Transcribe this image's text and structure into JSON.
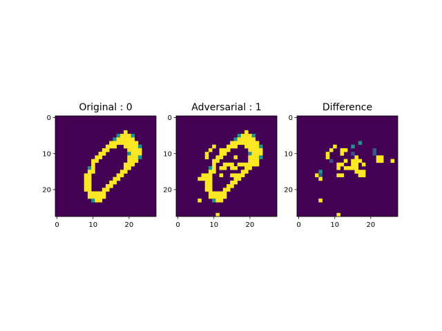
{
  "figure": {
    "background": "#ffffff"
  },
  "colormap": {
    "name": "viridis",
    "stops": [
      "#440154",
      "#3b528b",
      "#21918c",
      "#5ec962",
      "#fde725"
    ]
  },
  "chart_data": [
    {
      "type": "heatmap",
      "title": "Original : 0",
      "grid": "28x28",
      "xticks": [
        0,
        10,
        20
      ],
      "yticks": [
        0,
        10,
        20
      ],
      "xlim": [
        -0.5,
        27.5
      ],
      "ylim": [
        27.5,
        -0.5
      ],
      "rows": [
        "............................",
        "............................",
        "............................",
        "............................",
        "...................H........",
        ".................uHHHu......",
        "................uHHHHH......",
        "...............HHHHHHHH.....",
        "..............HHH..HHHHu....",
        ".............HH.....HHHH....",
        "............HH......uHHH....",
        "...........HH.......HHHu....",
        "..........HH........HHH.....",
        "..........H........HHH......",
        ".........uH........HH.......",
        ".........HH.......HH........",
        "........HH.......HH.........",
        "........HH......HH..........",
        "........HH.....HH...........",
        "........HH....HH............",
        "........HH...HH.............",
        ".........HHHHH..............",
        ".........HHHHH..............",
        "..........uHH...............",
        "............................",
        "............................",
        "............................",
        "............................"
      ]
    },
    {
      "type": "heatmap",
      "title": "Adversarial : 1",
      "grid": "28x28",
      "xticks": [
        0,
        10,
        20
      ],
      "yticks": [
        0,
        10,
        20
      ],
      "xlim": [
        -0.5,
        27.5
      ],
      "ylim": [
        27.5,
        -0.5
      ],
      "rows": [
        "............................",
        "............................",
        "............................",
        "............................",
        "...................H........",
        ".................uHHHu......",
        "................uHHHHH......",
        "...............HHHHHHHH.....",
        "..........H...HHH..HHHHu....",
        ".........H..HHH.....HHHH....",
        "........H...HH......uHHH....",
        "........H..HH...H...HHHu....",
        "..........HH........HHH.....",
        "..........H..HHH.HHHHHH.....",
        ".........uH.HH.HH..HH.......",
        ".........HH.......HH........",
        ".......HHH..H..HHHH.........",
        "......HHHH......HH..........",
        "........HH.....HH...........",
        "........HH....HH............",
        "........HH...HH.............",
        ".........HHHHH..............",
        ".........HHHHH..............",
        "......H...uHH...............",
        "............................",
        "............................",
        "............................",
        "...........H................"
      ]
    },
    {
      "type": "heatmap",
      "title": "Difference",
      "grid": "28x28",
      "xticks": [
        0,
        10,
        20
      ],
      "yticks": [
        0,
        10,
        20
      ],
      "xlim": [
        -0.5,
        27.5
      ],
      "ylim": [
        27.5,
        -0.5
      ],
      "rows": [
        "............................",
        "............................",
        "............................",
        "............................",
        "............................",
        "............................",
        "............................",
        ".................u..........",
        "..........H....u............",
        ".........H..HH.......m......",
        "........H...H..m.....m......",
        "........H.......H.....HH....",
        ".........m...H.HHH....HH..H.",
        "...........HH..HH.H.........",
        "...........H.HHHH...........",
        "......u.........HHH.........",
        ".....Hm....HH....HH.........",
        "......H.....................",
        "............................",
        "............................",
        "............................",
        "............................",
        "............................",
        "......H.....................",
        "............................",
        "............................",
        "............................",
        "...........H................"
      ]
    }
  ]
}
